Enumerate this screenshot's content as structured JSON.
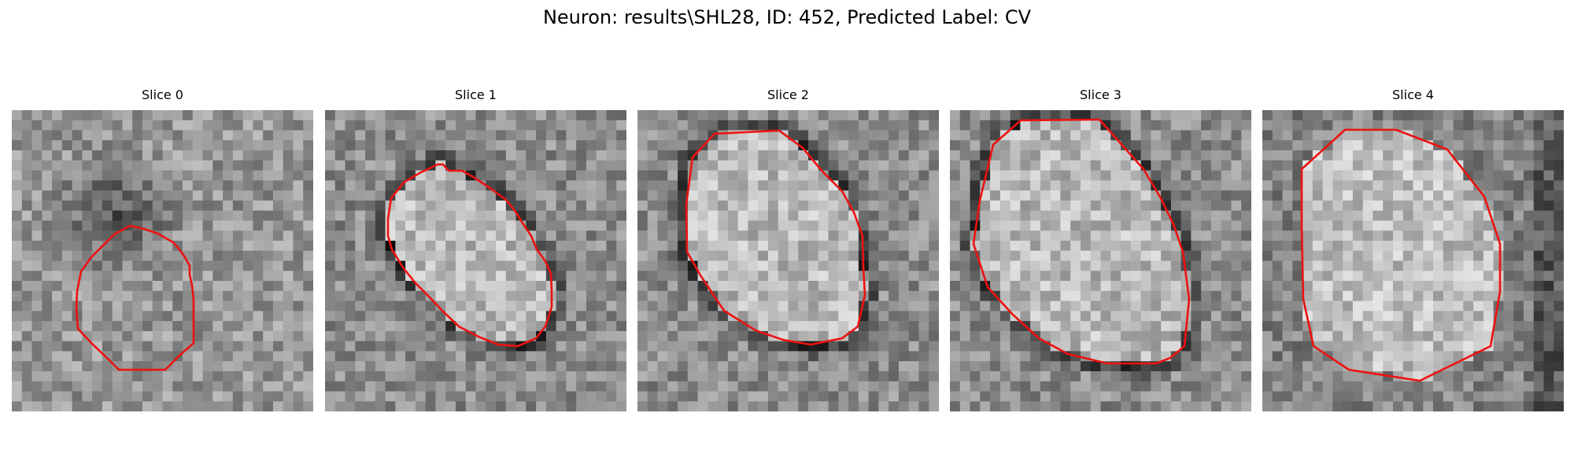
{
  "figure": {
    "title": "Neuron: results\\SHL28, ID: 452, Predicted Label: CV"
  },
  "slices": [
    {
      "label": "Slice 0",
      "variant": 0
    },
    {
      "label": "Slice 1",
      "variant": 1
    },
    {
      "label": "Slice 2",
      "variant": 2
    },
    {
      "label": "Slice 3",
      "variant": 3
    },
    {
      "label": "Slice 4",
      "variant": 4
    }
  ],
  "colors": {
    "contour": "#ee1111",
    "background": "#ffffff"
  }
}
